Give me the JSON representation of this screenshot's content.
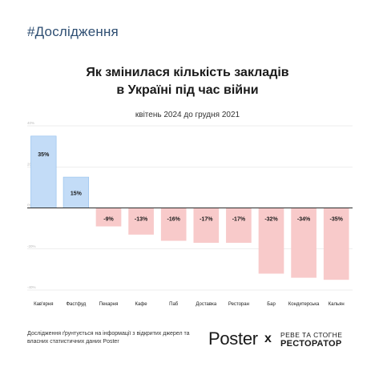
{
  "header": {
    "hashtag": "#Дослідження",
    "title_line1": "Як змінилася кількість закладів",
    "title_line2": "в Україні під час війни",
    "subtitle": "квітень 2024 до грудня 2021"
  },
  "chart_data": {
    "type": "bar",
    "categories": [
      "Кав'ярня",
      "Фастфуд",
      "Пекарня",
      "Кафе",
      "Паб",
      "Доставка",
      "Ресторан",
      "Бар",
      "Кондитерська",
      "Кальян"
    ],
    "values": [
      35,
      15,
      -9,
      -13,
      -16,
      -17,
      -17,
      -32,
      -34,
      -35
    ],
    "data_labels": [
      "35%",
      "15%",
      "-9%",
      "-13%",
      "-16%",
      "-17%",
      "-17%",
      "-32%",
      "-34%",
      "-35%"
    ],
    "y_ticks": [
      40,
      20,
      0,
      -20,
      -40
    ],
    "y_tick_labels": [
      "40%",
      "20%",
      "0%",
      "-20%",
      "-40%"
    ],
    "ylim": [
      -40,
      40
    ],
    "grid": true,
    "colors": {
      "positive": "#c3dcf7",
      "positive_edge": "#8fbdec",
      "negative": "#f8caca",
      "zero_line": "#2a2a2a",
      "grid": "#dddddd"
    }
  },
  "footer": {
    "footnote": "Дослідження ґрунтується на інформації з відкритих джерел та власних статистичних даних Poster",
    "brand_bold": "Pos",
    "brand_light": "ter",
    "separator": "x",
    "partner_line1": "РЕВЕ ТА СТОГНЕ",
    "partner_line2": "РЕСТОРАТОР"
  }
}
